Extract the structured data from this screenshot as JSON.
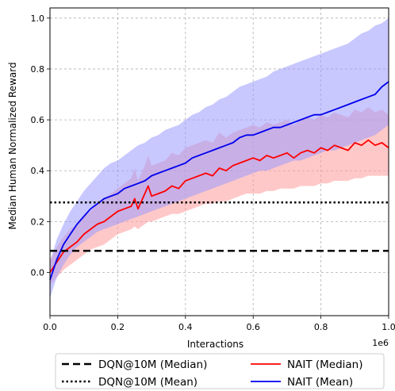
{
  "chart_data": {
    "type": "line",
    "title": "",
    "xlabel": "Interactions",
    "ylabel": "Median Human Normalized Reward",
    "x_offset_label": "1e6",
    "xlim": [
      0,
      1000000
    ],
    "ylim": [
      -0.17,
      1.04
    ],
    "xticks": [
      0,
      200000,
      400000,
      600000,
      800000,
      1000000
    ],
    "xtick_labels": [
      "0.0",
      "0.2",
      "0.4",
      "0.6",
      "0.8",
      "1.0"
    ],
    "yticks": [
      0.0,
      0.2,
      0.4,
      0.6,
      0.8,
      1.0
    ],
    "ytick_labels": [
      "0.0",
      "0.2",
      "0.4",
      "0.6",
      "0.8",
      "1.0"
    ],
    "grid": true,
    "legend_position": "below",
    "hlines": [
      {
        "name": "DQN@10M (Median)",
        "y": 0.085,
        "style": "dashed",
        "color": "#000000"
      },
      {
        "name": "DQN@10M (Mean)",
        "y": 0.275,
        "style": "dotted",
        "color": "#000000"
      }
    ],
    "series": [
      {
        "name": "NAIT (Median)",
        "color": "#ff0000",
        "band_color": "#ff9a9a",
        "x": [
          0,
          20000,
          40000,
          60000,
          80000,
          100000,
          120000,
          140000,
          160000,
          180000,
          200000,
          220000,
          240000,
          250000,
          260000,
          270000,
          280000,
          290000,
          300000,
          320000,
          340000,
          360000,
          380000,
          400000,
          420000,
          440000,
          460000,
          480000,
          500000,
          520000,
          540000,
          560000,
          580000,
          600000,
          620000,
          640000,
          660000,
          680000,
          700000,
          720000,
          740000,
          760000,
          780000,
          800000,
          820000,
          840000,
          860000,
          880000,
          900000,
          920000,
          940000,
          960000,
          980000,
          1000000
        ],
        "values": [
          0.0,
          0.04,
          0.08,
          0.1,
          0.12,
          0.15,
          0.17,
          0.19,
          0.2,
          0.22,
          0.24,
          0.25,
          0.26,
          0.29,
          0.25,
          0.28,
          0.31,
          0.34,
          0.3,
          0.31,
          0.32,
          0.34,
          0.33,
          0.36,
          0.37,
          0.38,
          0.39,
          0.38,
          0.41,
          0.4,
          0.42,
          0.43,
          0.44,
          0.45,
          0.44,
          0.46,
          0.45,
          0.46,
          0.47,
          0.45,
          0.47,
          0.48,
          0.47,
          0.49,
          0.48,
          0.5,
          0.49,
          0.48,
          0.51,
          0.5,
          0.52,
          0.5,
          0.51,
          0.49
        ],
        "lower": [
          -0.05,
          -0.02,
          0.01,
          0.03,
          0.05,
          0.07,
          0.09,
          0.1,
          0.11,
          0.13,
          0.15,
          0.16,
          0.17,
          0.18,
          0.17,
          0.18,
          0.19,
          0.2,
          0.2,
          0.21,
          0.22,
          0.23,
          0.23,
          0.24,
          0.25,
          0.26,
          0.27,
          0.27,
          0.28,
          0.28,
          0.29,
          0.3,
          0.31,
          0.31,
          0.31,
          0.32,
          0.32,
          0.33,
          0.33,
          0.33,
          0.34,
          0.34,
          0.34,
          0.35,
          0.35,
          0.36,
          0.36,
          0.36,
          0.37,
          0.37,
          0.38,
          0.38,
          0.38,
          0.38
        ],
        "upper": [
          0.05,
          0.1,
          0.14,
          0.17,
          0.19,
          0.22,
          0.24,
          0.27,
          0.29,
          0.31,
          0.33,
          0.35,
          0.37,
          0.41,
          0.36,
          0.39,
          0.42,
          0.46,
          0.42,
          0.43,
          0.44,
          0.47,
          0.46,
          0.49,
          0.5,
          0.51,
          0.52,
          0.51,
          0.55,
          0.53,
          0.55,
          0.56,
          0.57,
          0.58,
          0.57,
          0.59,
          0.58,
          0.59,
          0.6,
          0.58,
          0.6,
          0.61,
          0.6,
          0.62,
          0.61,
          0.63,
          0.62,
          0.61,
          0.64,
          0.63,
          0.65,
          0.63,
          0.64,
          0.62
        ]
      },
      {
        "name": "NAIT (Mean)",
        "color": "#0000ee",
        "band_color": "#9a9aff",
        "x": [
          0,
          20000,
          40000,
          60000,
          80000,
          100000,
          120000,
          140000,
          160000,
          180000,
          200000,
          220000,
          240000,
          260000,
          280000,
          300000,
          320000,
          340000,
          360000,
          380000,
          400000,
          420000,
          440000,
          460000,
          480000,
          500000,
          520000,
          540000,
          560000,
          580000,
          600000,
          620000,
          640000,
          660000,
          680000,
          700000,
          720000,
          740000,
          760000,
          780000,
          800000,
          820000,
          840000,
          860000,
          880000,
          900000,
          920000,
          940000,
          960000,
          980000,
          1000000
        ],
        "values": [
          -0.03,
          0.05,
          0.11,
          0.15,
          0.19,
          0.22,
          0.25,
          0.27,
          0.29,
          0.3,
          0.31,
          0.33,
          0.34,
          0.35,
          0.36,
          0.38,
          0.39,
          0.4,
          0.41,
          0.42,
          0.43,
          0.45,
          0.46,
          0.47,
          0.48,
          0.49,
          0.5,
          0.51,
          0.53,
          0.54,
          0.54,
          0.55,
          0.56,
          0.57,
          0.57,
          0.58,
          0.59,
          0.6,
          0.61,
          0.62,
          0.62,
          0.63,
          0.64,
          0.65,
          0.66,
          0.67,
          0.68,
          0.69,
          0.7,
          0.73,
          0.75
        ],
        "lower": [
          -0.1,
          -0.02,
          0.03,
          0.07,
          0.1,
          0.12,
          0.14,
          0.16,
          0.17,
          0.18,
          0.19,
          0.2,
          0.21,
          0.22,
          0.23,
          0.24,
          0.25,
          0.26,
          0.27,
          0.28,
          0.29,
          0.3,
          0.31,
          0.32,
          0.33,
          0.34,
          0.35,
          0.36,
          0.37,
          0.38,
          0.39,
          0.4,
          0.4,
          0.41,
          0.42,
          0.43,
          0.44,
          0.44,
          0.45,
          0.46,
          0.47,
          0.48,
          0.48,
          0.49,
          0.5,
          0.51,
          0.52,
          0.53,
          0.54,
          0.56,
          0.58
        ],
        "upper": [
          0.04,
          0.13,
          0.19,
          0.24,
          0.28,
          0.32,
          0.35,
          0.38,
          0.41,
          0.43,
          0.44,
          0.46,
          0.48,
          0.5,
          0.51,
          0.53,
          0.54,
          0.56,
          0.57,
          0.58,
          0.6,
          0.62,
          0.63,
          0.65,
          0.66,
          0.68,
          0.69,
          0.71,
          0.73,
          0.74,
          0.75,
          0.76,
          0.77,
          0.79,
          0.8,
          0.81,
          0.82,
          0.83,
          0.84,
          0.85,
          0.86,
          0.87,
          0.88,
          0.89,
          0.9,
          0.92,
          0.94,
          0.95,
          0.97,
          0.98,
          1.0
        ]
      }
    ]
  }
}
